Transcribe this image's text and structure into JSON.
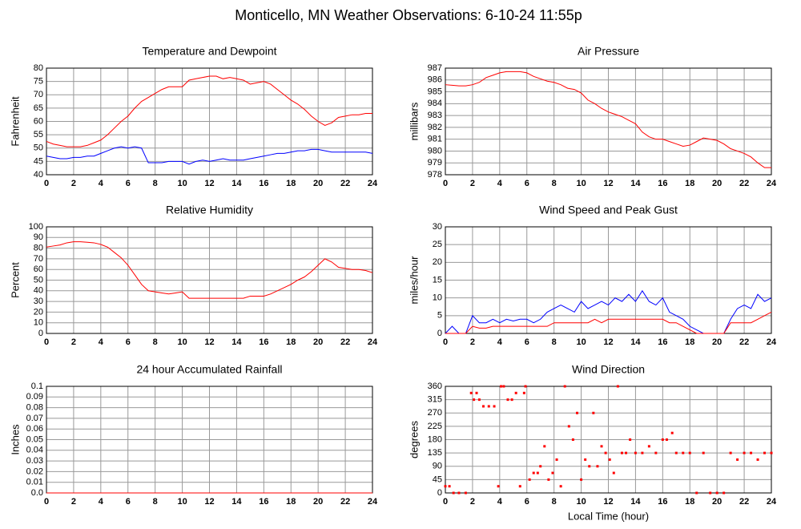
{
  "title": "Monticello, MN Weather Observations: 6-10-24 11:55p",
  "chart_data": [
    {
      "type": "line",
      "title": "Temperature and Dewpoint",
      "ylabel": "Fahrenheit",
      "xlim": [
        0,
        24
      ],
      "xticks": [
        0,
        2,
        4,
        6,
        8,
        10,
        12,
        14,
        16,
        18,
        20,
        22,
        24
      ],
      "ylim": [
        40,
        80
      ],
      "yticks": [
        40,
        45,
        50,
        55,
        60,
        65,
        70,
        75,
        80
      ],
      "grid": true,
      "x": [
        0,
        0.5,
        1,
        1.5,
        2,
        2.5,
        3,
        3.5,
        4,
        4.5,
        5,
        5.5,
        6,
        6.5,
        7,
        7.5,
        8,
        8.5,
        9,
        9.5,
        10,
        10.5,
        11,
        11.5,
        12,
        12.5,
        13,
        13.5,
        14,
        14.5,
        15,
        15.5,
        16,
        16.5,
        17,
        17.5,
        18,
        18.5,
        19,
        19.5,
        20,
        20.5,
        21,
        21.5,
        22,
        22.5,
        23,
        23.5,
        24
      ],
      "series": [
        {
          "color": "#ff0000",
          "values": [
            52.5,
            51.5,
            51,
            50.5,
            50.5,
            50.5,
            51,
            52,
            53,
            55,
            57.5,
            60,
            62,
            65,
            67.5,
            69,
            70.5,
            72,
            73,
            73,
            73,
            75.5,
            76,
            76.5,
            77,
            77,
            76,
            76.5,
            76,
            75.5,
            74,
            74.5,
            75,
            74,
            72,
            70,
            68,
            66.5,
            64.5,
            62,
            60,
            58.5,
            59.5,
            61.5,
            62,
            62.5,
            62.5,
            63,
            63
          ]
        },
        {
          "color": "#0000ff",
          "values": [
            47,
            46.5,
            46,
            46,
            46.5,
            46.5,
            47,
            47,
            48,
            49,
            50,
            50.5,
            50,
            50.5,
            50,
            44.5,
            44.5,
            44.5,
            45,
            45,
            45,
            44,
            45,
            45.5,
            45,
            45.5,
            46,
            45.5,
            45.5,
            45.5,
            46,
            46.5,
            47,
            47.5,
            48,
            48,
            48.5,
            49,
            49,
            49.5,
            49.5,
            49,
            48.5,
            48.5,
            48.5,
            48.5,
            48.5,
            48.5,
            48
          ]
        }
      ]
    },
    {
      "type": "line",
      "title": "Air Pressure",
      "ylabel": "millibars",
      "xlim": [
        0,
        24
      ],
      "xticks": [
        0,
        2,
        4,
        6,
        8,
        10,
        12,
        14,
        16,
        18,
        20,
        22,
        24
      ],
      "ylim": [
        978,
        987
      ],
      "yticks": [
        978,
        979,
        980,
        981,
        982,
        983,
        984,
        985,
        986,
        987
      ],
      "grid": true,
      "x": [
        0,
        0.5,
        1,
        1.5,
        2,
        2.5,
        3,
        3.5,
        4,
        4.5,
        5,
        5.5,
        6,
        6.5,
        7,
        7.5,
        8,
        8.5,
        9,
        9.5,
        10,
        10.5,
        11,
        11.5,
        12,
        12.5,
        13,
        13.5,
        14,
        14.5,
        15,
        15.5,
        16,
        16.5,
        17,
        17.5,
        18,
        18.5,
        19,
        19.5,
        20,
        20.5,
        21,
        21.5,
        22,
        22.5,
        23,
        23.5,
        24
      ],
      "series": [
        {
          "color": "#ff0000",
          "values": [
            985.6,
            985.55,
            985.5,
            985.5,
            985.6,
            985.8,
            986.2,
            986.4,
            986.6,
            986.7,
            986.7,
            986.7,
            986.6,
            986.3,
            986.1,
            985.9,
            985.8,
            985.6,
            985.3,
            985.2,
            984.9,
            984.3,
            984.0,
            983.6,
            983.3,
            983.1,
            982.9,
            982.6,
            982.3,
            981.6,
            981.2,
            981.0,
            981.0,
            980.8,
            980.6,
            980.4,
            980.5,
            980.8,
            981.1,
            981.0,
            980.9,
            980.6,
            980.2,
            980.0,
            979.8,
            979.5,
            979.0,
            978.6,
            978.6
          ]
        }
      ]
    },
    {
      "type": "line",
      "title": "Relative Humidity",
      "ylabel": "Percent",
      "xlim": [
        0,
        24
      ],
      "xticks": [
        0,
        2,
        4,
        6,
        8,
        10,
        12,
        14,
        16,
        18,
        20,
        22,
        24
      ],
      "ylim": [
        0,
        100
      ],
      "yticks": [
        0,
        10,
        20,
        30,
        40,
        50,
        60,
        70,
        80,
        90,
        100
      ],
      "grid": true,
      "x": [
        0,
        0.5,
        1,
        1.5,
        2,
        2.5,
        3,
        3.5,
        4,
        4.5,
        5,
        5.5,
        6,
        6.5,
        7,
        7.5,
        8,
        8.5,
        9,
        9.5,
        10,
        10.5,
        11,
        11.5,
        12,
        12.5,
        13,
        13.5,
        14,
        14.5,
        15,
        15.5,
        16,
        16.5,
        17,
        17.5,
        18,
        18.5,
        19,
        19.5,
        20,
        20.5,
        21,
        21.5,
        22,
        22.5,
        23,
        23.5,
        24
      ],
      "series": [
        {
          "color": "#ff0000",
          "values": [
            81,
            82,
            83,
            85,
            86,
            86,
            85.5,
            85,
            83.5,
            81,
            76,
            71,
            64,
            55,
            46,
            40,
            39,
            38,
            37,
            38,
            39,
            33,
            33,
            33,
            33,
            33,
            33,
            33,
            33,
            33,
            35,
            35,
            35,
            37,
            40,
            43,
            46,
            50,
            53,
            58,
            64,
            70,
            67,
            62,
            61,
            60,
            60,
            59,
            57
          ]
        }
      ]
    },
    {
      "type": "line",
      "title": "Wind Speed and Peak Gust",
      "ylabel": "miles/hour",
      "xlim": [
        0,
        24
      ],
      "xticks": [
        0,
        2,
        4,
        6,
        8,
        10,
        12,
        14,
        16,
        18,
        20,
        22,
        24
      ],
      "ylim": [
        0,
        30
      ],
      "yticks": [
        0,
        5,
        10,
        15,
        20,
        25,
        30
      ],
      "grid": true,
      "x": [
        0,
        0.5,
        1,
        1.5,
        2,
        2.5,
        3,
        3.5,
        4,
        4.5,
        5,
        5.5,
        6,
        6.5,
        7,
        7.5,
        8,
        8.5,
        9,
        9.5,
        10,
        10.5,
        11,
        11.5,
        12,
        12.5,
        13,
        13.5,
        14,
        14.5,
        15,
        15.5,
        16,
        16.5,
        17,
        17.5,
        18,
        18.5,
        19,
        19.5,
        20,
        20.5,
        21,
        21.5,
        22,
        22.5,
        23,
        23.5,
        24
      ],
      "series": [
        {
          "color": "#0000ff",
          "values": [
            0,
            2,
            0,
            0,
            5,
            3,
            3,
            4,
            3,
            4,
            3.5,
            4,
            4,
            3,
            4,
            6,
            7,
            8,
            7,
            6,
            9,
            7,
            8,
            9,
            8,
            10,
            9,
            11,
            9,
            12,
            9,
            8,
            10,
            6,
            5,
            4,
            2,
            1,
            0,
            0,
            0,
            0,
            4,
            7,
            8,
            7,
            11,
            9,
            10
          ]
        },
        {
          "color": "#ff0000",
          "values": [
            0,
            0,
            0,
            0,
            2,
            1.5,
            1.5,
            2,
            2,
            2,
            2,
            2,
            2,
            2,
            2,
            2,
            3,
            3,
            3,
            3,
            3,
            3,
            4,
            3,
            4,
            4,
            4,
            4,
            4,
            4,
            4,
            4,
            4,
            3,
            3,
            2,
            1,
            0,
            0,
            0,
            0,
            0,
            3,
            3,
            3,
            3,
            4,
            5,
            6
          ]
        }
      ]
    },
    {
      "type": "line",
      "title": "24 hour Accumulated Rainfall",
      "ylabel": "Inches",
      "xlim": [
        0,
        24
      ],
      "xticks": [
        0,
        2,
        4,
        6,
        8,
        10,
        12,
        14,
        16,
        18,
        20,
        22,
        24
      ],
      "ylim": [
        0,
        0.1
      ],
      "yticks": [
        {
          "value": 0,
          "label": "0.0"
        },
        0.01,
        0.02,
        0.03,
        0.04,
        0.05,
        0.06,
        0.07,
        0.08,
        0.09,
        0.1
      ],
      "grid": true,
      "x": [
        0,
        24
      ],
      "series": [
        {
          "color": "#ff0000",
          "values": [
            0,
            0
          ]
        }
      ]
    },
    {
      "type": "scatter",
      "title": "Wind Direction",
      "ylabel": "degrees",
      "xlabel": "Local Time (hour)",
      "xlim": [
        0,
        24
      ],
      "xticks": [
        0,
        2,
        4,
        6,
        8,
        10,
        12,
        14,
        16,
        18,
        20,
        22,
        24
      ],
      "ylim": [
        0,
        360
      ],
      "yticks": [
        0,
        45,
        90,
        135,
        180,
        225,
        270,
        315,
        360
      ],
      "grid": true,
      "x": [
        0,
        0.3,
        0.6,
        1,
        1.5,
        1.9,
        2.1,
        2.3,
        2.5,
        2.8,
        3.2,
        3.6,
        3.9,
        4.1,
        4.3,
        4.6,
        4.9,
        5.2,
        5.5,
        5.8,
        5.9,
        6.2,
        6.5,
        6.8,
        7,
        7.3,
        7.6,
        7.9,
        8.2,
        8.5,
        8.8,
        9.1,
        9.4,
        9.7,
        10,
        10.3,
        10.6,
        10.9,
        11.2,
        11.5,
        11.8,
        12.1,
        12.4,
        12.7,
        13,
        13.3,
        13.6,
        14,
        14.5,
        15,
        15.5,
        16,
        16.3,
        16.7,
        17,
        17.5,
        18,
        18.5,
        19,
        19.5,
        20,
        20.5,
        21,
        21.5,
        22,
        22.5,
        23,
        23.5,
        24
      ],
      "series": [
        {
          "color": "#ff0000",
          "values": [
            22.5,
            22.5,
            0,
            0,
            0,
            337.5,
            315,
            337.5,
            315,
            292.5,
            292.5,
            292.5,
            22.5,
            360,
            360,
            315,
            315,
            337.5,
            22.5,
            337.5,
            360,
            45,
            67.5,
            67.5,
            90,
            157.5,
            45,
            67.5,
            112.5,
            22.5,
            360,
            225,
            180,
            270,
            45,
            112.5,
            90,
            270,
            90,
            157.5,
            135,
            112.5,
            67.5,
            360,
            135,
            135,
            180,
            135,
            135,
            157.5,
            135,
            180,
            180,
            202.5,
            135,
            135,
            135,
            0,
            135,
            0,
            0,
            0,
            135,
            112.5,
            135,
            135,
            112.5,
            135,
            135
          ]
        }
      ]
    }
  ]
}
